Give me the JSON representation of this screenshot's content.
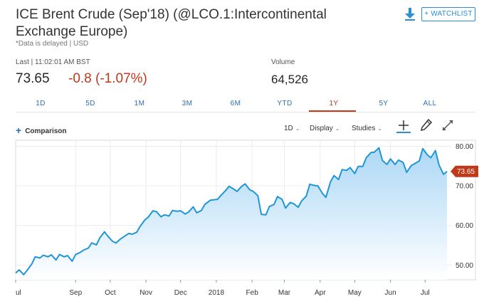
{
  "header": {
    "title": "ICE Brent Crude (Sep'18) (@LCO.1:Intercontinental Exchange Europe)",
    "delayed_note": "*Data is delayed | USD",
    "download_icon": "download-icon",
    "watchlist_label": "+ WATCHLIST"
  },
  "quote": {
    "last_label": "Last | 11:02:01 AM BST",
    "last_price": "73.65",
    "change": "-0.8 (-1.07%)",
    "volume_label": "Volume",
    "volume": "64,526"
  },
  "range_tabs": [
    {
      "label": "1D",
      "active": false
    },
    {
      "label": "5D",
      "active": false
    },
    {
      "label": "1M",
      "active": false
    },
    {
      "label": "3M",
      "active": false
    },
    {
      "label": "6M",
      "active": false
    },
    {
      "label": "YTD",
      "active": false
    },
    {
      "label": "1Y",
      "active": true
    },
    {
      "label": "5Y",
      "active": false
    },
    {
      "label": "ALL",
      "active": false
    }
  ],
  "toolbar": {
    "comparison_label": "Comparison",
    "interval_label": "1D",
    "display_label": "Display",
    "studies_label": "Studies",
    "crosshair_icon": "crosshair-icon",
    "draw_icon": "pencil-icon",
    "expand_icon": "expand-icon"
  },
  "colors": {
    "line": "#1f96d6",
    "fill_top": "#a9d6f5",
    "fill_bottom": "#ffffff",
    "down": "#c1391b",
    "link": "#2a6fb0"
  },
  "chart_data": {
    "type": "area",
    "title": "",
    "xlabel": "",
    "ylabel": "",
    "ylim": [
      46.3,
      81.5
    ],
    "y_ticks": [
      "50.00",
      "60.00",
      "70.00",
      "80.00"
    ],
    "y_tick_values": [
      50,
      60,
      70,
      80
    ],
    "x_ticks": [
      "ul",
      "Sep",
      "Oct",
      "Nov",
      "Dec",
      "2018",
      "Feb",
      "Mar",
      "Apr",
      "May",
      "Jun",
      "Jul"
    ],
    "x_tick_dates": [
      "2017-07-11",
      "2017-09-01",
      "2017-10-01",
      "2017-11-01",
      "2017-12-01",
      "2018-01-01",
      "2018-02-01",
      "2018-03-01",
      "2018-04-01",
      "2018-05-01",
      "2018-06-01",
      "2018-07-01"
    ],
    "x_range": [
      "2017-07-11",
      "2018-07-20"
    ],
    "last_value": "73.65",
    "grid": true,
    "series": [
      {
        "points": [
          [
            "2017-07-11",
            48.0
          ],
          [
            "2017-07-14",
            48.8
          ],
          [
            "2017-07-18",
            47.6
          ],
          [
            "2017-07-21",
            48.7
          ],
          [
            "2017-07-25",
            50.3
          ],
          [
            "2017-07-28",
            52.1
          ],
          [
            "2017-08-01",
            51.8
          ],
          [
            "2017-08-04",
            52.5
          ],
          [
            "2017-08-08",
            52.1
          ],
          [
            "2017-08-11",
            52.6
          ],
          [
            "2017-08-15",
            51.3
          ],
          [
            "2017-08-18",
            52.7
          ],
          [
            "2017-08-22",
            52.1
          ],
          [
            "2017-08-25",
            52.4
          ],
          [
            "2017-08-29",
            51.0
          ],
          [
            "2017-09-01",
            52.7
          ],
          [
            "2017-09-05",
            53.2
          ],
          [
            "2017-09-08",
            53.8
          ],
          [
            "2017-09-12",
            54.3
          ],
          [
            "2017-09-15",
            55.6
          ],
          [
            "2017-09-19",
            55.1
          ],
          [
            "2017-09-22",
            56.9
          ],
          [
            "2017-09-26",
            58.4
          ],
          [
            "2017-09-29",
            57.3
          ],
          [
            "2017-10-03",
            56.0
          ],
          [
            "2017-10-06",
            55.6
          ],
          [
            "2017-10-10",
            56.6
          ],
          [
            "2017-10-13",
            57.2
          ],
          [
            "2017-10-17",
            58.0
          ],
          [
            "2017-10-20",
            57.8
          ],
          [
            "2017-10-24",
            58.3
          ],
          [
            "2017-10-27",
            59.8
          ],
          [
            "2017-10-31",
            61.4
          ],
          [
            "2017-11-03",
            62.1
          ],
          [
            "2017-11-07",
            63.7
          ],
          [
            "2017-11-10",
            63.5
          ],
          [
            "2017-11-14",
            62.2
          ],
          [
            "2017-11-17",
            62.7
          ],
          [
            "2017-11-21",
            62.4
          ],
          [
            "2017-11-24",
            63.8
          ],
          [
            "2017-11-28",
            63.6
          ],
          [
            "2017-12-01",
            63.7
          ],
          [
            "2017-12-05",
            62.9
          ],
          [
            "2017-12-08",
            63.4
          ],
          [
            "2017-12-12",
            64.7
          ],
          [
            "2017-12-15",
            63.2
          ],
          [
            "2017-12-19",
            63.8
          ],
          [
            "2017-12-22",
            65.3
          ],
          [
            "2017-12-27",
            66.4
          ],
          [
            "2018-01-02",
            66.6
          ],
          [
            "2018-01-05",
            67.6
          ],
          [
            "2018-01-09",
            68.8
          ],
          [
            "2018-01-12",
            69.9
          ],
          [
            "2018-01-16",
            69.2
          ],
          [
            "2018-01-19",
            68.6
          ],
          [
            "2018-01-23",
            69.9
          ],
          [
            "2018-01-26",
            70.5
          ],
          [
            "2018-01-30",
            69.0
          ],
          [
            "2018-02-02",
            68.6
          ],
          [
            "2018-02-06",
            67.5
          ],
          [
            "2018-02-09",
            62.8
          ],
          [
            "2018-02-13",
            62.7
          ],
          [
            "2018-02-16",
            64.8
          ],
          [
            "2018-02-20",
            65.3
          ],
          [
            "2018-02-23",
            67.3
          ],
          [
            "2018-02-27",
            66.6
          ],
          [
            "2018-03-02",
            64.4
          ],
          [
            "2018-03-06",
            65.8
          ],
          [
            "2018-03-09",
            65.5
          ],
          [
            "2018-03-13",
            64.6
          ],
          [
            "2018-03-16",
            66.2
          ],
          [
            "2018-03-20",
            67.4
          ],
          [
            "2018-03-23",
            70.4
          ],
          [
            "2018-03-27",
            70.1
          ],
          [
            "2018-03-30",
            70.0
          ],
          [
            "2018-04-03",
            68.1
          ],
          [
            "2018-04-06",
            67.1
          ],
          [
            "2018-04-10",
            71.0
          ],
          [
            "2018-04-13",
            72.6
          ],
          [
            "2018-04-17",
            71.6
          ],
          [
            "2018-04-20",
            74.1
          ],
          [
            "2018-04-24",
            73.9
          ],
          [
            "2018-04-27",
            74.6
          ],
          [
            "2018-05-01",
            73.1
          ],
          [
            "2018-05-04",
            74.9
          ],
          [
            "2018-05-08",
            74.9
          ],
          [
            "2018-05-11",
            77.1
          ],
          [
            "2018-05-15",
            78.4
          ],
          [
            "2018-05-18",
            78.5
          ],
          [
            "2018-05-22",
            79.6
          ],
          [
            "2018-05-25",
            76.4
          ],
          [
            "2018-05-29",
            75.4
          ],
          [
            "2018-06-01",
            76.8
          ],
          [
            "2018-06-05",
            75.4
          ],
          [
            "2018-06-08",
            76.5
          ],
          [
            "2018-06-12",
            75.9
          ],
          [
            "2018-06-15",
            73.4
          ],
          [
            "2018-06-19",
            75.1
          ],
          [
            "2018-06-22",
            75.6
          ],
          [
            "2018-06-26",
            76.3
          ],
          [
            "2018-06-29",
            79.4
          ],
          [
            "2018-07-03",
            77.8
          ],
          [
            "2018-07-06",
            77.1
          ],
          [
            "2018-07-10",
            78.9
          ],
          [
            "2018-07-13",
            75.3
          ],
          [
            "2018-07-17",
            72.9
          ],
          [
            "2018-07-20",
            73.65
          ]
        ]
      }
    ]
  }
}
